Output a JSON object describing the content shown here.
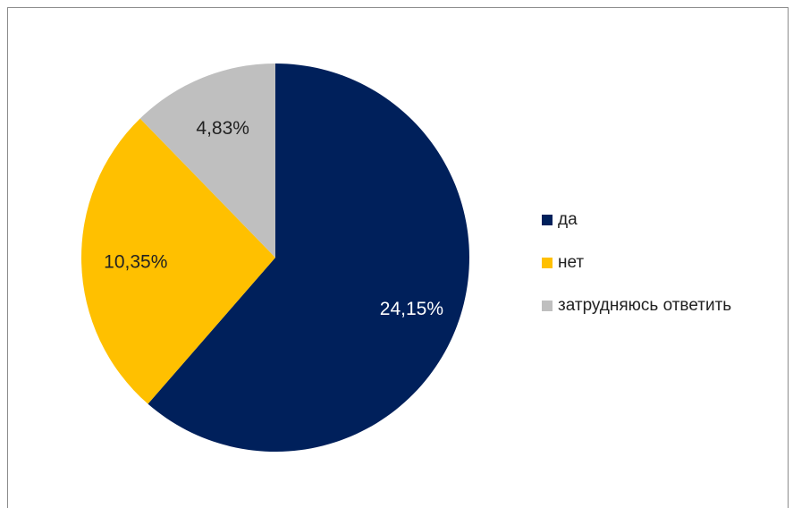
{
  "chart_data": {
    "type": "pie",
    "categories": [
      "да",
      "нет",
      "затрудняюсь ответить"
    ],
    "values": [
      24.15,
      10.35,
      4.83
    ],
    "labels": [
      "24,15%",
      "10,35%",
      "4,83%"
    ],
    "colors": [
      "#00205b",
      "#ffc000",
      "#bfbfbf"
    ],
    "label_colors": [
      "#ffffff",
      "#222222",
      "#222222"
    ],
    "legend_position": "right"
  }
}
